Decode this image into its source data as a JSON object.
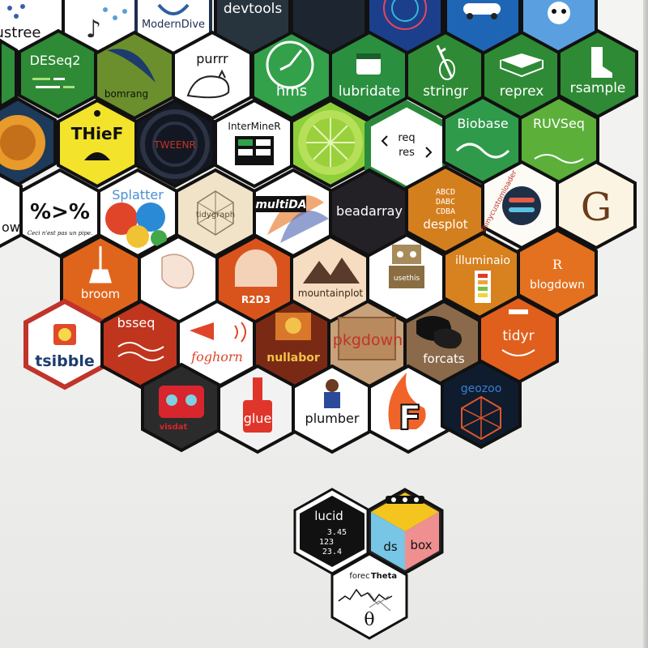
{
  "stickers": {
    "ustree": "ustree",
    "moderndive": "ModernDive",
    "devtools": "devtools",
    "deseq2": "DESeq2",
    "bomrang": "bomrang",
    "purrr": "purrr",
    "hms": "hms",
    "lubridate": "lubridate",
    "stringr": "stringr",
    "reprex": "reprex",
    "rsample": "rsample",
    "thief": "THieF",
    "tweenr": "TWEENR",
    "interminer": "InterMineR",
    "reqres_req": "req",
    "reqres_res": "res",
    "biobase": "Biobase",
    "ruvseq": "RUVSeq",
    "down": "own",
    "pipe_text": "%>%",
    "pipe_caption": "Ceci n'est pas un pipe.",
    "splatter": "Splatter",
    "tidygraph": "tidygraph",
    "multida": "multiDA",
    "beadarray": "beadarray",
    "desplot": "desplot",
    "desplot_grid": [
      "ABCD",
      "DABC",
      "CDBA"
    ],
    "shinycustomloader": "shinycustomloader",
    "g_letter": "G",
    "broom": "broom",
    "r2d3": "R2D3",
    "mountainplot": "mountainplot",
    "usethis": "usethis",
    "illuminaio": "illuminaio",
    "blogdown": "blogdown",
    "tsibble": "tsibble",
    "bsseq": "bsseq",
    "foghorn": "foghorn",
    "nullabor": "nullabor",
    "pkgdown": "pkgdown",
    "forcats": "forcats",
    "tidyr": "tidyr",
    "visdat": "visdat",
    "glue": "glue",
    "plumber": "plumber",
    "f_letter": "F",
    "geozoo": "geozoo",
    "lucid": "lucid",
    "lucid_values": [
      "3.45",
      "123",
      "23.4"
    ],
    "dsbox_ds": "ds",
    "dsbox_box": "box",
    "forecTheta_a": "forec",
    "forecTheta_b": "Theta",
    "theta_symbol": "θ"
  },
  "colors": {
    "wall": "#f1f1ef",
    "hex_border": "#111111",
    "green_dark": "#2e7d32",
    "green_mid": "#3a9a3c",
    "orange": "#e46a1e",
    "dark_red": "#a8320f"
  }
}
